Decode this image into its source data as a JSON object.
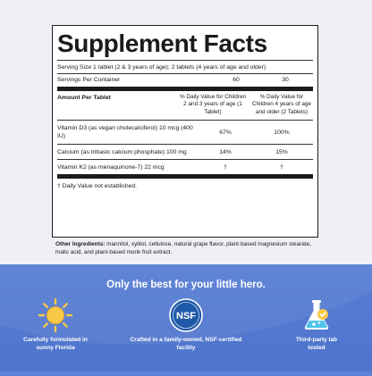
{
  "facts": {
    "title": "Supplement Facts",
    "serving_size": "Serving Size 1 tablet (2 & 3 years of age); 2 tablets (4 years of age and older)",
    "servings_per_container_label": "Servings Per Container",
    "servings_per_container_1": "60",
    "servings_per_container_2": "30",
    "amount_header": "Amount Per Tablet",
    "col1_header": "% Daily Value for Children 2 and 3 years of age (1 Tablet)",
    "col2_header": "% Daily Value for Children 4 years of age and older (2 Tablets)",
    "nutrients": [
      {
        "name": "Vitamin D3 (as vegan cholecalciferol) 10 mcg (400 IU)",
        "dv1": "67%",
        "dv2": "100%"
      },
      {
        "name": "Calcium (as tribasic calcium phosphate) 100 mg",
        "dv1": "14%",
        "dv2": "15%"
      },
      {
        "name": "Vitamin K2 (as menaquinone-7) 22 mcg",
        "dv1": "†",
        "dv2": "†"
      }
    ],
    "footnote": "† Daily Value not established."
  },
  "ingredients": {
    "label": "Other Ingredients:",
    "text": " mannitol, xylitol, cellulose, natural grape flavor, plant-based magnesium stearate, malic acid, and plant-based monk fruit extract."
  },
  "tagline": "Only the best for your little hero.",
  "features": [
    {
      "icon": "sun-icon",
      "caption": "Carefully formulated in sunny Florida"
    },
    {
      "icon": "nsf-badge-icon",
      "badge_text": "NSF",
      "caption": "Crafted in a family-owned, NSF-certified facility"
    },
    {
      "icon": "lab-flask-icon",
      "caption": "Third-party lab tested"
    }
  ],
  "colors": {
    "background_blue": "#5c82d6",
    "panel": "#eef0f6",
    "sun_yellow": "#f7c948",
    "nsf_blue": "#1e5aa8"
  }
}
